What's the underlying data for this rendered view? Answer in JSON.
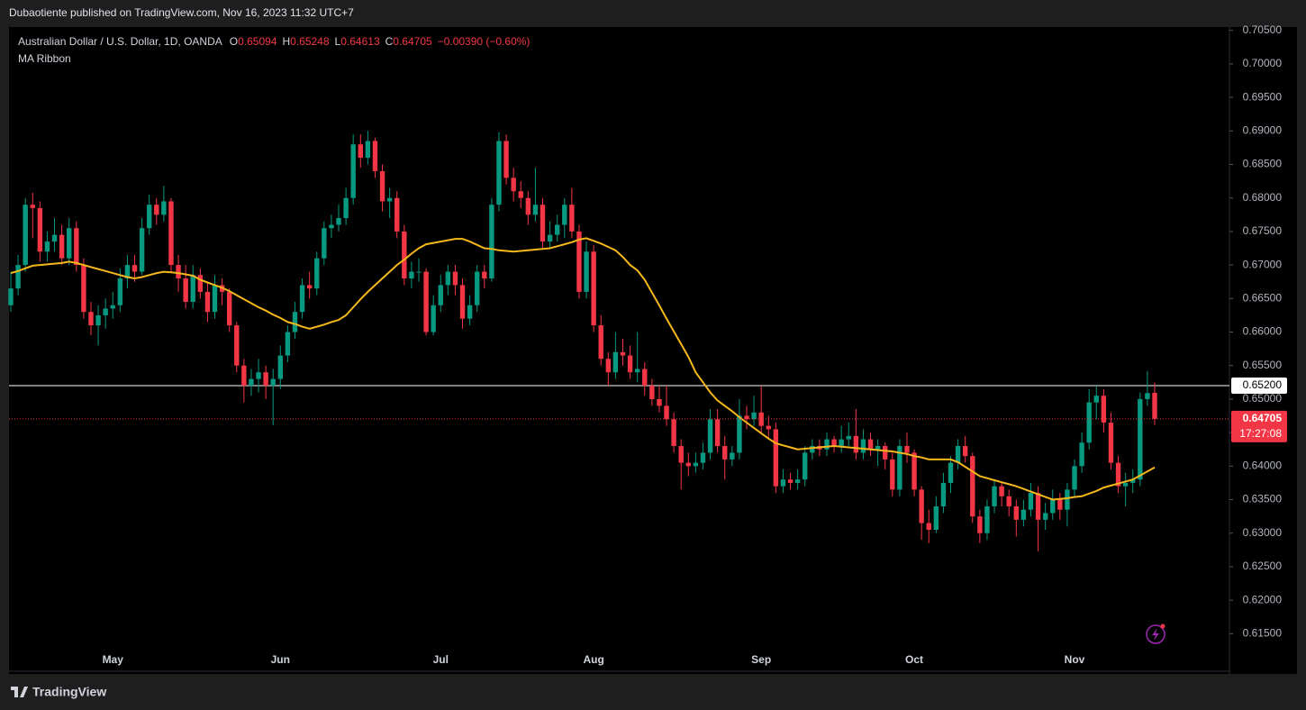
{
  "publisher": "Dubaotiente published on TradingView.com, Nov 16, 2023 11:32 UTC+7",
  "footer": "TradingView",
  "chart_data": {
    "type": "candlestick",
    "title": "Australian Dollar / U.S. Dollar, 1D, OANDA",
    "ohlc_labels": [
      "O",
      "H",
      "L",
      "C"
    ],
    "change": "−0.00390 (−0.60%)",
    "countdown": "17:27:08",
    "up_color": "#089981",
    "down_color": "#f23645",
    "categories": [
      null,
      null,
      null,
      null,
      null,
      null,
      null,
      null,
      null,
      null,
      null,
      null,
      null,
      null,
      "May",
      null,
      null,
      null,
      null,
      null,
      null,
      null,
      null,
      null,
      null,
      null,
      null,
      null,
      null,
      null,
      null,
      null,
      null,
      null,
      null,
      null,
      null,
      "Jun",
      null,
      null,
      null,
      null,
      null,
      null,
      null,
      null,
      null,
      null,
      null,
      null,
      null,
      null,
      null,
      null,
      null,
      null,
      null,
      null,
      null,
      "Jul",
      null,
      null,
      null,
      null,
      null,
      null,
      null,
      null,
      null,
      null,
      null,
      null,
      null,
      null,
      null,
      null,
      null,
      null,
      null,
      null,
      "Aug",
      null,
      null,
      null,
      null,
      null,
      null,
      null,
      null,
      null,
      null,
      null,
      null,
      null,
      null,
      null,
      null,
      null,
      null,
      null,
      null,
      null,
      null,
      "Sep",
      null,
      null,
      null,
      null,
      null,
      null,
      null,
      null,
      null,
      null,
      null,
      null,
      null,
      null,
      null,
      null,
      null,
      null,
      null,
      null,
      "Oct",
      null,
      null,
      null,
      null,
      null,
      null,
      null,
      null,
      null,
      null,
      null,
      null,
      null,
      null,
      null,
      null,
      null,
      null,
      null,
      null,
      null,
      "Nov",
      null,
      null,
      null,
      null,
      null,
      null,
      null,
      null,
      null,
      null,
      null
    ],
    "open": [
      0.664,
      0.6665,
      0.67,
      0.679,
      0.6785,
      0.672,
      0.6735,
      0.6745,
      0.671,
      0.6755,
      0.67,
      0.663,
      0.661,
      0.6625,
      0.6635,
      0.664,
      0.668,
      0.67,
      0.669,
      0.6755,
      0.679,
      0.6775,
      0.6795,
      0.67,
      0.668,
      0.6645,
      0.6685,
      0.666,
      0.663,
      0.667,
      0.666,
      0.661,
      0.655,
      0.652,
      0.653,
      0.654,
      0.652,
      0.653,
      0.6565,
      0.66,
      0.663,
      0.667,
      0.6665,
      0.671,
      0.6755,
      0.676,
      0.677,
      0.68,
      0.688,
      0.686,
      0.6885,
      0.684,
      0.6795,
      0.68,
      0.675,
      0.668,
      0.669,
      0.669,
      0.66,
      0.664,
      0.667,
      0.669,
      0.667,
      0.662,
      0.664,
      0.669,
      0.668,
      0.679,
      0.6885,
      0.683,
      0.681,
      0.68,
      0.6775,
      0.679,
      0.6735,
      0.6745,
      0.676,
      0.679,
      0.675,
      0.666,
      0.672,
      0.661,
      0.656,
      0.654,
      0.657,
      0.6565,
      0.654,
      0.6545,
      0.652,
      0.65,
      0.649,
      0.647,
      0.643,
      0.6405,
      0.64,
      0.6405,
      0.642,
      0.647,
      0.643,
      0.641,
      0.642,
      0.6475,
      0.647,
      0.648,
      0.646,
      0.6455,
      0.637,
      0.638,
      0.6375,
      0.638,
      0.642,
      0.643,
      0.6425,
      0.644,
      0.643,
      0.644,
      0.6445,
      0.642,
      0.644,
      0.6425,
      0.643,
      0.641,
      0.6365,
      0.643,
      0.642,
      0.6365,
      0.6315,
      0.6305,
      0.634,
      0.6375,
      0.6405,
      0.643,
      0.6415,
      0.6325,
      0.63,
      0.634,
      0.637,
      0.6355,
      0.634,
      0.632,
      0.6335,
      0.636,
      0.632,
      0.633,
      0.635,
      0.6335,
      0.6365,
      0.64,
      0.6435,
      0.6495,
      0.6505,
      0.6465,
      0.6405,
      0.637,
      0.6375,
      0.638,
      0.65,
      0.65094
    ],
    "high": [
      0.669,
      0.6715,
      0.68,
      0.6808,
      0.6795,
      0.675,
      0.677,
      0.676,
      0.677,
      0.6765,
      0.671,
      0.6645,
      0.664,
      0.665,
      0.666,
      0.6695,
      0.6715,
      0.6715,
      0.677,
      0.6805,
      0.68,
      0.6818,
      0.68,
      0.6715,
      0.67,
      0.67,
      0.6695,
      0.6675,
      0.6685,
      0.668,
      0.6665,
      0.6615,
      0.656,
      0.6545,
      0.656,
      0.655,
      0.6545,
      0.658,
      0.661,
      0.6645,
      0.668,
      0.669,
      0.672,
      0.6765,
      0.6775,
      0.679,
      0.6815,
      0.6895,
      0.6895,
      0.69,
      0.689,
      0.685,
      0.6815,
      0.681,
      0.676,
      0.6705,
      0.671,
      0.6695,
      0.6655,
      0.6685,
      0.67,
      0.67,
      0.668,
      0.6655,
      0.67,
      0.67,
      0.68,
      0.6898,
      0.6895,
      0.6845,
      0.6825,
      0.681,
      0.6845,
      0.68,
      0.6765,
      0.6775,
      0.68,
      0.6815,
      0.676,
      0.6735,
      0.673,
      0.6625,
      0.657,
      0.66,
      0.659,
      0.658,
      0.66,
      0.6555,
      0.653,
      0.652,
      0.652,
      0.648,
      0.644,
      0.642,
      0.642,
      0.6435,
      0.6485,
      0.6485,
      0.6445,
      0.643,
      0.65,
      0.649,
      0.6505,
      0.652,
      0.6475,
      0.6465,
      0.6395,
      0.639,
      0.6395,
      0.643,
      0.644,
      0.644,
      0.645,
      0.6445,
      0.646,
      0.6465,
      0.6485,
      0.6455,
      0.645,
      0.644,
      0.6435,
      0.642,
      0.644,
      0.645,
      0.6425,
      0.637,
      0.6335,
      0.6355,
      0.639,
      0.6415,
      0.644,
      0.6445,
      0.642,
      0.6335,
      0.635,
      0.638,
      0.6375,
      0.6365,
      0.635,
      0.635,
      0.6375,
      0.637,
      0.6345,
      0.6365,
      0.636,
      0.6375,
      0.641,
      0.645,
      0.6515,
      0.652,
      0.6515,
      0.648,
      0.6415,
      0.639,
      0.6395,
      0.651,
      0.6542,
      0.65248
    ],
    "low": [
      0.663,
      0.6655,
      0.669,
      0.674,
      0.6705,
      0.6705,
      0.672,
      0.67,
      0.67,
      0.669,
      0.662,
      0.6595,
      0.658,
      0.6605,
      0.662,
      0.663,
      0.6665,
      0.6675,
      0.6685,
      0.6745,
      0.676,
      0.6765,
      0.669,
      0.666,
      0.6635,
      0.6635,
      0.665,
      0.6615,
      0.662,
      0.664,
      0.66,
      0.654,
      0.6495,
      0.6505,
      0.651,
      0.65,
      0.6461,
      0.6515,
      0.6555,
      0.659,
      0.662,
      0.665,
      0.6655,
      0.67,
      0.674,
      0.675,
      0.676,
      0.679,
      0.6845,
      0.685,
      0.683,
      0.678,
      0.677,
      0.674,
      0.667,
      0.6665,
      0.6675,
      0.6595,
      0.6595,
      0.663,
      0.6655,
      0.6655,
      0.6605,
      0.661,
      0.663,
      0.6665,
      0.6675,
      0.678,
      0.682,
      0.6795,
      0.6785,
      0.676,
      0.6765,
      0.6725,
      0.6725,
      0.6735,
      0.674,
      0.674,
      0.665,
      0.665,
      0.66,
      0.655,
      0.652,
      0.653,
      0.655,
      0.653,
      0.6525,
      0.6505,
      0.649,
      0.648,
      0.646,
      0.642,
      0.6365,
      0.6385,
      0.639,
      0.6395,
      0.641,
      0.642,
      0.638,
      0.64,
      0.641,
      0.6455,
      0.646,
      0.645,
      0.644,
      0.636,
      0.636,
      0.6365,
      0.6365,
      0.637,
      0.641,
      0.6415,
      0.6415,
      0.642,
      0.642,
      0.643,
      0.641,
      0.641,
      0.6415,
      0.64,
      0.6395,
      0.6355,
      0.6355,
      0.6405,
      0.6355,
      0.629,
      0.6285,
      0.63,
      0.633,
      0.636,
      0.6395,
      0.6405,
      0.6315,
      0.6285,
      0.629,
      0.633,
      0.634,
      0.6325,
      0.6295,
      0.631,
      0.6325,
      0.6273,
      0.6305,
      0.632,
      0.632,
      0.631,
      0.6355,
      0.639,
      0.6425,
      0.647,
      0.645,
      0.6395,
      0.636,
      0.634,
      0.636,
      0.637,
      0.649,
      0.64613
    ],
    "close": [
      0.6665,
      0.67,
      0.679,
      0.6785,
      0.672,
      0.6735,
      0.6745,
      0.671,
      0.6755,
      0.67,
      0.663,
      0.661,
      0.6625,
      0.6635,
      0.664,
      0.668,
      0.67,
      0.669,
      0.6755,
      0.679,
      0.6775,
      0.6795,
      0.67,
      0.668,
      0.6645,
      0.6685,
      0.666,
      0.663,
      0.667,
      0.666,
      0.661,
      0.655,
      0.652,
      0.653,
      0.654,
      0.652,
      0.653,
      0.6565,
      0.66,
      0.663,
      0.667,
      0.6665,
      0.671,
      0.6755,
      0.676,
      0.677,
      0.68,
      0.688,
      0.686,
      0.6885,
      0.684,
      0.6795,
      0.68,
      0.675,
      0.668,
      0.669,
      0.669,
      0.66,
      0.664,
      0.667,
      0.669,
      0.667,
      0.662,
      0.664,
      0.669,
      0.668,
      0.679,
      0.6885,
      0.683,
      0.681,
      0.68,
      0.6775,
      0.679,
      0.6735,
      0.6745,
      0.676,
      0.679,
      0.675,
      0.666,
      0.672,
      0.661,
      0.656,
      0.654,
      0.657,
      0.6565,
      0.654,
      0.6545,
      0.652,
      0.65,
      0.649,
      0.647,
      0.643,
      0.6405,
      0.64,
      0.6405,
      0.642,
      0.647,
      0.643,
      0.641,
      0.642,
      0.6475,
      0.647,
      0.648,
      0.646,
      0.6455,
      0.637,
      0.638,
      0.6375,
      0.638,
      0.642,
      0.643,
      0.6425,
      0.644,
      0.643,
      0.644,
      0.6445,
      0.642,
      0.644,
      0.6425,
      0.643,
      0.641,
      0.6365,
      0.643,
      0.642,
      0.6365,
      0.6315,
      0.6305,
      0.634,
      0.6375,
      0.6405,
      0.643,
      0.6415,
      0.6325,
      0.63,
      0.634,
      0.637,
      0.6355,
      0.634,
      0.632,
      0.6335,
      0.636,
      0.632,
      0.633,
      0.635,
      0.6335,
      0.6365,
      0.64,
      0.6435,
      0.6495,
      0.6505,
      0.6465,
      0.6405,
      0.637,
      0.6375,
      0.638,
      0.65,
      0.6509,
      0.64705
    ],
    "series": [
      {
        "name": "MA Ribbon",
        "color": "#f5b71c",
        "values": [
          0.6688,
          0.6691,
          0.6695,
          0.6699,
          0.67,
          0.6701,
          0.6702,
          0.6703,
          0.6705,
          0.6703,
          0.67,
          0.6697,
          0.6694,
          0.6691,
          0.6688,
          0.6685,
          0.6682,
          0.668,
          0.6682,
          0.6685,
          0.6688,
          0.669,
          0.6689,
          0.6688,
          0.6686,
          0.6684,
          0.6678,
          0.6674,
          0.667,
          0.6666,
          0.6661,
          0.6655,
          0.6649,
          0.6643,
          0.6637,
          0.6632,
          0.6626,
          0.6621,
          0.6615,
          0.6612,
          0.6608,
          0.6605,
          0.6608,
          0.6611,
          0.6615,
          0.6618,
          0.6625,
          0.6637,
          0.6649,
          0.666,
          0.667,
          0.668,
          0.669,
          0.67,
          0.6708,
          0.6717,
          0.6725,
          0.6731,
          0.6733,
          0.6735,
          0.6737,
          0.6739,
          0.6739,
          0.6735,
          0.673,
          0.6725,
          0.6724,
          0.6722,
          0.6721,
          0.672,
          0.6721,
          0.6722,
          0.6723,
          0.6724,
          0.6725,
          0.6728,
          0.6731,
          0.6734,
          0.6738,
          0.674,
          0.6736,
          0.6732,
          0.6727,
          0.6722,
          0.6712,
          0.67,
          0.6692,
          0.6678,
          0.6659,
          0.664,
          0.662,
          0.6601,
          0.6582,
          0.6563,
          0.654,
          0.6525,
          0.651,
          0.6498,
          0.649,
          0.6482,
          0.6473,
          0.6465,
          0.6457,
          0.6449,
          0.6441,
          0.6434,
          0.6431,
          0.6428,
          0.6425,
          0.6426,
          0.6427,
          0.6428,
          0.6429,
          0.643,
          0.6429,
          0.6428,
          0.6427,
          0.6426,
          0.6425,
          0.6424,
          0.6423,
          0.6422,
          0.642,
          0.6418,
          0.6415,
          0.6413,
          0.641,
          0.641,
          0.641,
          0.641,
          0.6406,
          0.6399,
          0.6392,
          0.6385,
          0.6382,
          0.6379,
          0.6376,
          0.6373,
          0.637,
          0.6366,
          0.6362,
          0.6358,
          0.6354,
          0.635,
          0.6351,
          0.6352,
          0.6354,
          0.6355,
          0.6359,
          0.6363,
          0.6368,
          0.6371,
          0.6374,
          0.6377,
          0.638,
          0.6386,
          0.6392,
          0.6398
        ]
      }
    ],
    "hlines": [
      {
        "value": 0.652,
        "label": "0.65200"
      }
    ],
    "ylim": [
      0.6094,
      0.7055
    ],
    "yticks": [
      {
        "value": 0.615,
        "label": "0.61500"
      },
      {
        "value": 0.62,
        "label": "0.62000"
      },
      {
        "value": 0.625,
        "label": "0.62500"
      },
      {
        "value": 0.63,
        "label": "0.63000"
      },
      {
        "value": 0.635,
        "label": "0.63500"
      },
      {
        "value": 0.64,
        "label": "0.64000"
      },
      {
        "value": 0.645,
        "label": "0.64500"
      },
      {
        "value": 0.65,
        "label": "0.65000"
      },
      {
        "value": 0.655,
        "label": "0.65500"
      },
      {
        "value": 0.66,
        "label": "0.66000"
      },
      {
        "value": 0.665,
        "label": "0.66500"
      },
      {
        "value": 0.67,
        "label": "0.67000"
      },
      {
        "value": 0.675,
        "label": "0.67500"
      },
      {
        "value": 0.68,
        "label": "0.68000"
      },
      {
        "value": 0.685,
        "label": "0.68500"
      },
      {
        "value": 0.69,
        "label": "0.69000"
      },
      {
        "value": 0.695,
        "label": "0.69500"
      },
      {
        "value": 0.7,
        "label": "0.70000"
      },
      {
        "value": 0.705,
        "label": "0.70500"
      }
    ],
    "grid": false
  }
}
